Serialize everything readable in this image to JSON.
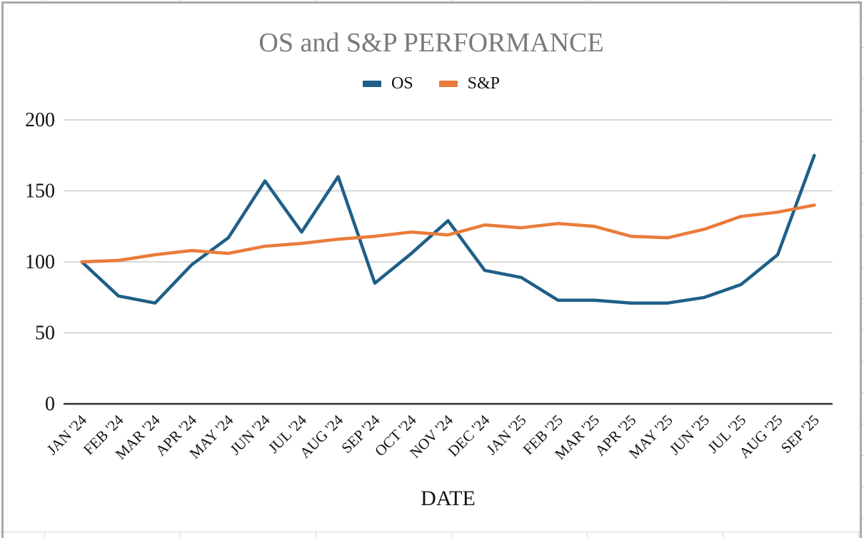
{
  "window": {
    "border_color": "#a9a9a9",
    "cell_grid_color": "#d9d9d9"
  },
  "chart_data": {
    "type": "line",
    "title": "OS and S&P PERFORMANCE",
    "xlabel": "DATE",
    "ylabel": "",
    "ylim": [
      0,
      200
    ],
    "yticks": [
      0,
      50,
      100,
      150,
      200
    ],
    "grid": true,
    "legend_position": "top-center",
    "categories": [
      "JAN '24",
      "FEB '24",
      "MAR '24",
      "APR '24",
      "MAY '24",
      "JUN '24",
      "JUL '24",
      "AUG '24",
      "SEP '24",
      "OCT '24",
      "NOV '24",
      "DEC '24",
      "JAN '25",
      "FEB '25",
      "MAR '25",
      "APR '25",
      "MAY '25",
      "JUN '25",
      "JUL '25",
      "AUG '25",
      "SEP '25"
    ],
    "series": [
      {
        "name": "OS",
        "color": "#1E5F87",
        "values": [
          100,
          76,
          71,
          98,
          117,
          157,
          121,
          160,
          85,
          106,
          129,
          94,
          89,
          73,
          73,
          71,
          71,
          75,
          84,
          105,
          175
        ]
      },
      {
        "name": "S&P",
        "color": "#E97C3B",
        "values": [
          100,
          101,
          105,
          108,
          106,
          111,
          113,
          116,
          118,
          121,
          119,
          126,
          124,
          127,
          125,
          118,
          117,
          123,
          132,
          135,
          140
        ]
      }
    ],
    "style": {
      "title_color": "#7a7a7a",
      "grid_color": "#cccccc",
      "axis_color": "#2f2f2f",
      "label_color": "#111111"
    }
  }
}
